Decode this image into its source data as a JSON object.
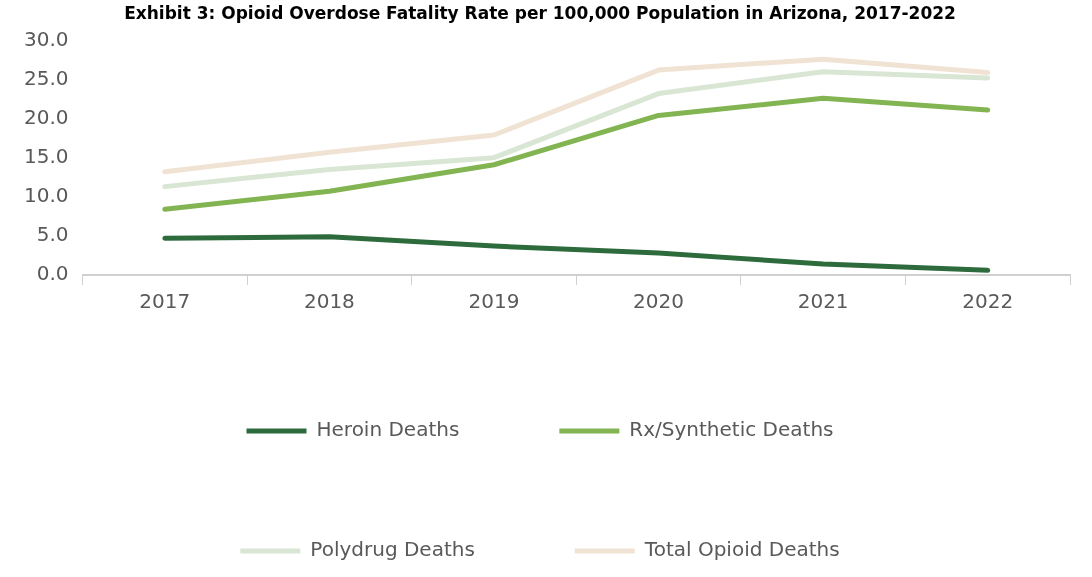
{
  "chart_data": {
    "type": "line",
    "title": "Exhibit 3: Opioid Overdose Fatality Rate per 100,000 Population in Arizona, 2017-2022",
    "categories": [
      "2017",
      "2018",
      "2019",
      "2020",
      "2021",
      "2022"
    ],
    "series": [
      {
        "name": "Heroin Deaths",
        "color": "#2e6b3c",
        "values": [
          4.7,
          4.9,
          3.7,
          2.8,
          1.4,
          0.6
        ]
      },
      {
        "name": "Rx/Synthetic Deaths",
        "color": "#82b452",
        "values": [
          8.4,
          10.7,
          14.1,
          20.4,
          22.6,
          21.1
        ]
      },
      {
        "name": "Polydrug Deaths",
        "color": "#d9e6d4",
        "values": [
          11.3,
          13.5,
          15.0,
          23.2,
          26.0,
          25.2
        ]
      },
      {
        "name": "Total Opioid Deaths",
        "color": "#f0e3d4",
        "values": [
          13.2,
          15.7,
          17.9,
          26.2,
          27.6,
          25.9
        ]
      }
    ],
    "ylim": [
      0,
      30
    ],
    "yticks": [
      {
        "value": 0,
        "label": "0.0"
      },
      {
        "value": 5,
        "label": "5.0"
      },
      {
        "value": 10,
        "label": "10.0"
      },
      {
        "value": 15,
        "label": "15.0"
      },
      {
        "value": 20,
        "label": "20.0"
      },
      {
        "value": 25,
        "label": "25.0"
      },
      {
        "value": 30,
        "label": "30.0"
      }
    ],
    "grid": false,
    "legend": "bottom",
    "marker": "none",
    "line_style": "solid"
  }
}
